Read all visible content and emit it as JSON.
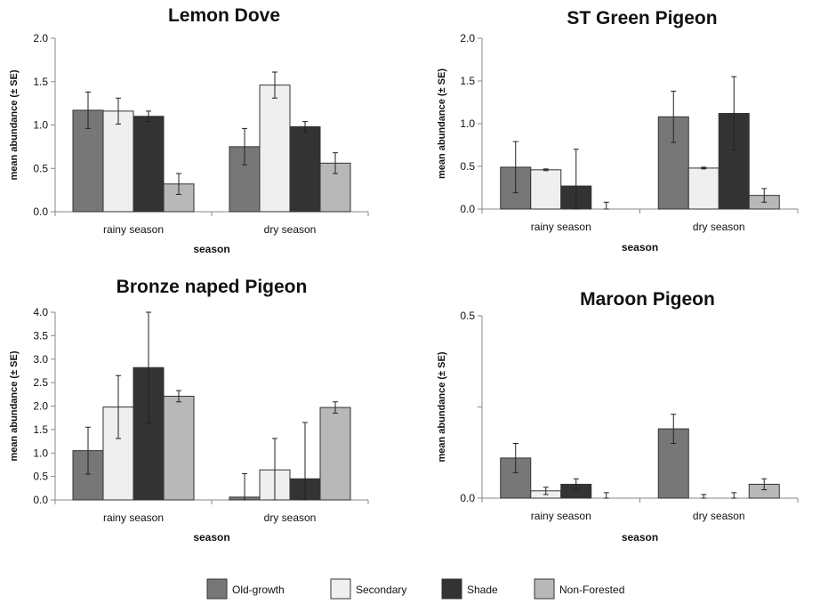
{
  "legend": {
    "entries": [
      {
        "label": "Old-growth",
        "color": "#777777"
      },
      {
        "label": "Secondary",
        "color": "#efefef"
      },
      {
        "label": "Shade",
        "color": "#333333"
      },
      {
        "label": "Non-Forested",
        "color": "#b8b8b8"
      }
    ]
  },
  "chart_data": [
    {
      "type": "bar",
      "title": "Lemon Dove",
      "xlabel": "season",
      "ylabel": "mean abundance (± SE)",
      "categories": [
        "rainy season",
        "dry season"
      ],
      "ylim": [
        0,
        2.0
      ],
      "yticks": [
        "0.0",
        "0.5",
        "1.0",
        "1.5",
        "2.0"
      ],
      "series": [
        {
          "name": "Old-growth",
          "values": [
            1.17,
            0.75
          ],
          "errors": [
            0.21,
            0.21
          ]
        },
        {
          "name": "Secondary",
          "values": [
            1.16,
            1.46
          ],
          "errors": [
            0.15,
            0.15
          ]
        },
        {
          "name": "Shade",
          "values": [
            1.1,
            0.98
          ],
          "errors": [
            0.06,
            0.06
          ]
        },
        {
          "name": "Non-Forested",
          "values": [
            0.32,
            0.56
          ],
          "errors": [
            0.12,
            0.12
          ]
        }
      ]
    },
    {
      "type": "bar",
      "title": "ST Green Pigeon",
      "xlabel": "season",
      "ylabel": "mean abundance (± SE)",
      "categories": [
        "rainy season",
        "dry season"
      ],
      "ylim": [
        0,
        2.0
      ],
      "yticks": [
        "0.0",
        "0.5",
        "1.0",
        "1.5",
        "2.0"
      ],
      "series": [
        {
          "name": "Old-growth",
          "values": [
            0.49,
            1.08
          ],
          "errors": [
            0.3,
            0.3
          ]
        },
        {
          "name": "Secondary",
          "values": [
            0.46,
            0.48
          ],
          "errors": [
            0.01,
            0.01
          ]
        },
        {
          "name": "Shade",
          "values": [
            0.27,
            1.12
          ],
          "errors": [
            0.43,
            0.43
          ]
        },
        {
          "name": "Non-Forested",
          "values": [
            0.0,
            0.16
          ],
          "errors": [
            0.08,
            0.08
          ]
        }
      ]
    },
    {
      "type": "bar",
      "title": "Bronze naped Pigeon",
      "xlabel": "season",
      "ylabel": "mean abundance (± SE)",
      "categories": [
        "rainy season",
        "dry season"
      ],
      "ylim": [
        0,
        4.0
      ],
      "yticks": [
        "0.0",
        "0.5",
        "1.0",
        "1.5",
        "2.0",
        "2.5",
        "3.0",
        "3.5",
        "4.0"
      ],
      "series": [
        {
          "name": "Old-growth",
          "values": [
            1.05,
            0.06
          ],
          "errors": [
            0.5,
            0.5
          ]
        },
        {
          "name": "Secondary",
          "values": [
            1.98,
            0.64
          ],
          "errors": [
            0.67,
            0.67
          ]
        },
        {
          "name": "Shade",
          "values": [
            2.82,
            0.45
          ],
          "errors": [
            1.18,
            1.2
          ]
        },
        {
          "name": "Non-Forested",
          "values": [
            2.21,
            1.97
          ],
          "errors": [
            0.12,
            0.12
          ]
        }
      ]
    },
    {
      "type": "bar",
      "title": "Maroon Pigeon",
      "xlabel": "season",
      "ylabel": "mean abundance (± SE)",
      "categories": [
        "rainy season",
        "dry season"
      ],
      "ylim": [
        0,
        0.5
      ],
      "yticks": [
        "0.0",
        "",
        "0.5"
      ],
      "series": [
        {
          "name": "Old-growth",
          "values": [
            0.11,
            0.19
          ],
          "errors": [
            0.04,
            0.04
          ]
        },
        {
          "name": "Secondary",
          "values": [
            0.02,
            0.0
          ],
          "errors": [
            0.01,
            0.01
          ]
        },
        {
          "name": "Shade",
          "values": [
            0.038,
            0.0
          ],
          "errors": [
            0.015,
            0.015
          ]
        },
        {
          "name": "Non-Forested",
          "values": [
            0.0,
            0.038
          ],
          "errors": [
            0.015,
            0.015
          ]
        }
      ]
    }
  ]
}
